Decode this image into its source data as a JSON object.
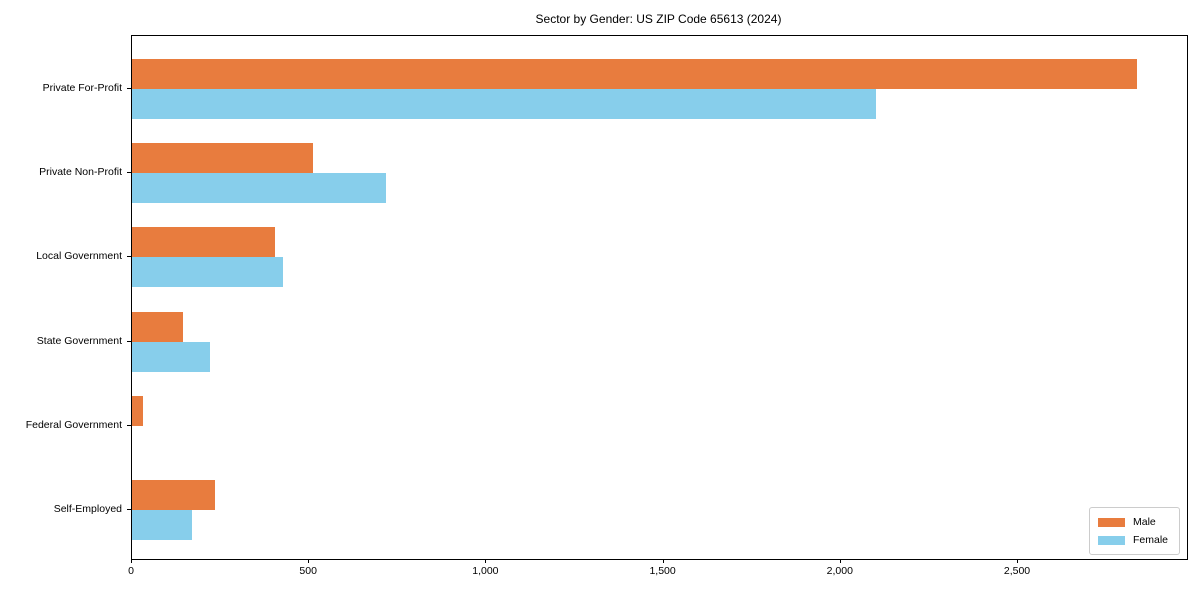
{
  "title": "Sector by Gender: US ZIP Code 65613 (2024)",
  "chart_data": {
    "type": "bar",
    "orientation": "horizontal",
    "title": "Sector by Gender: US ZIP Code 65613 (2024)",
    "xlabel": "",
    "ylabel": "",
    "grid": false,
    "categories": [
      "Private For-Profit",
      "Private Non-Profit",
      "Local Government",
      "State Government",
      "Federal Government",
      "Self-Employed"
    ],
    "series": [
      {
        "name": "Male",
        "color": "#e87c3e",
        "values": [
          2835,
          510,
          402,
          144,
          32,
          235
        ]
      },
      {
        "name": "Female",
        "color": "#87ceeb",
        "values": [
          2100,
          717,
          426,
          220,
          0,
          169
        ]
      }
    ],
    "xlim": [
      0,
      2977
    ],
    "xticks": {
      "values": [
        0,
        500,
        1000,
        1500,
        2000,
        2500
      ],
      "labels": [
        "0",
        "500",
        "1,000",
        "1,500",
        "2,000",
        "2,500"
      ]
    },
    "legend": {
      "position": "lower right",
      "entries": [
        "Male",
        "Female"
      ]
    }
  }
}
